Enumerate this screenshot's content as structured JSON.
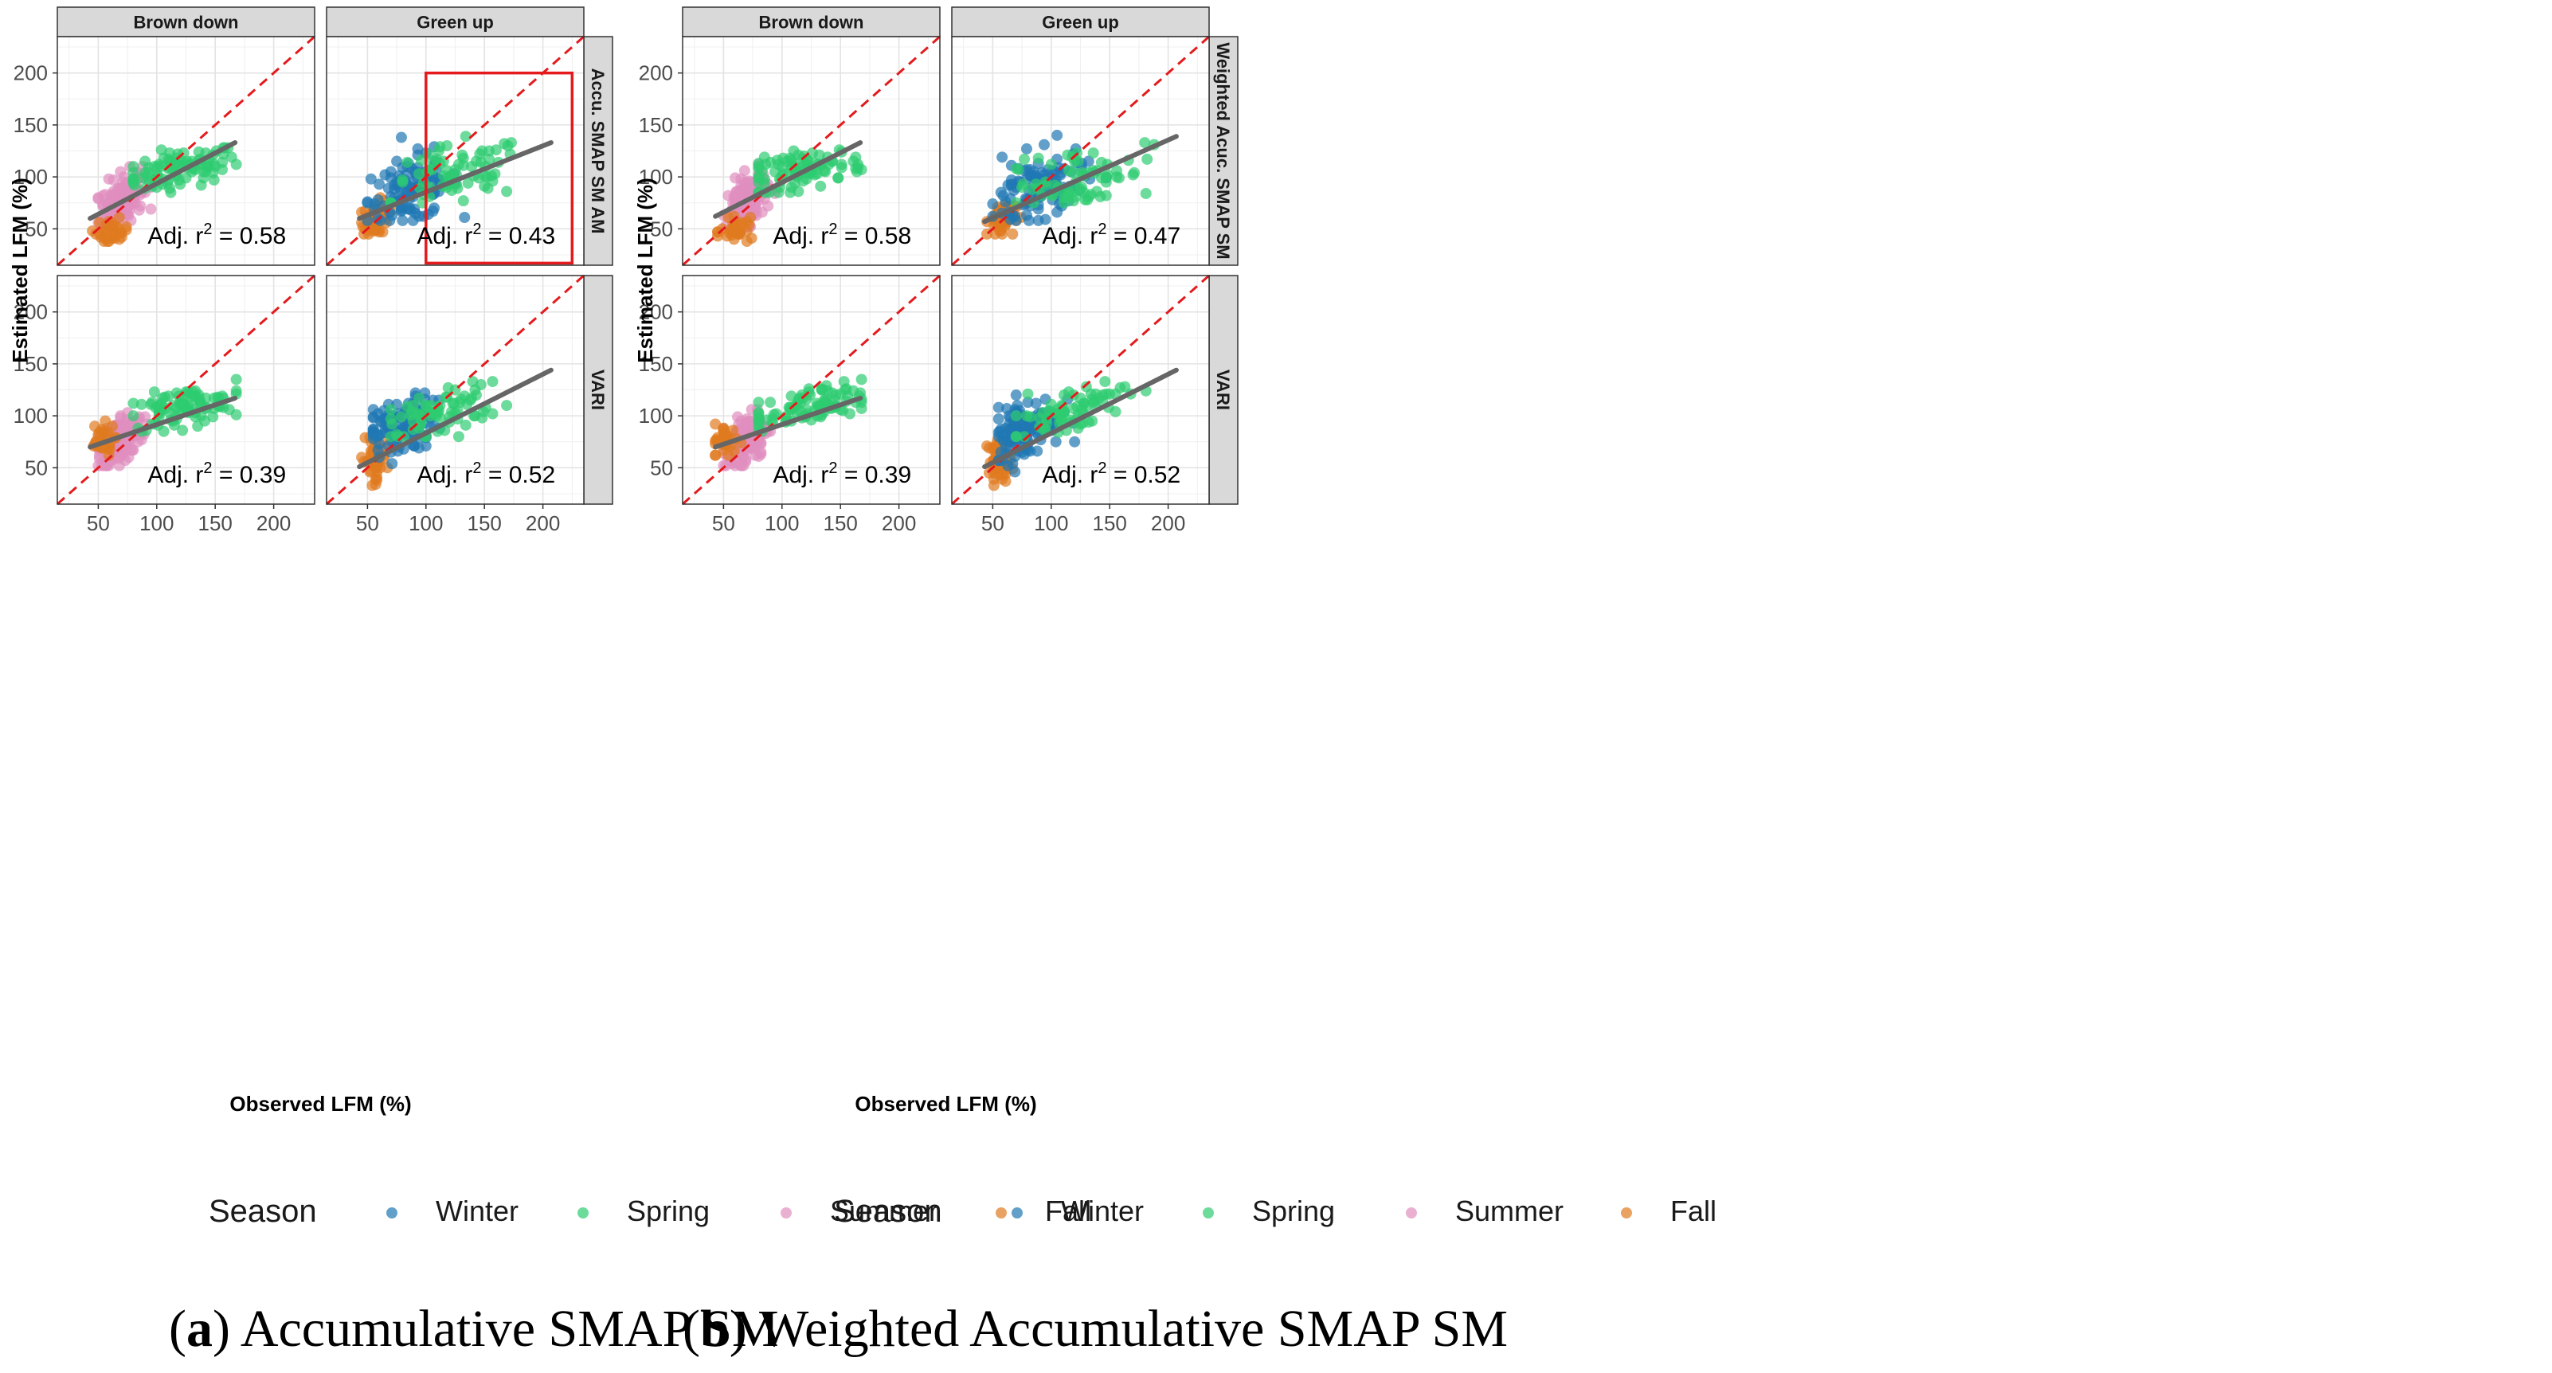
{
  "figure": {
    "captions": [
      {
        "letter": "a",
        "text": "Accumulative SMAP SM"
      },
      {
        "letter": "b",
        "text": "Weighted Accumulative SMAP SM"
      }
    ]
  },
  "legend": {
    "title": "Season",
    "items": [
      {
        "label": "Winter",
        "color": "#1f77b4"
      },
      {
        "label": "Spring",
        "color": "#2ecc71"
      },
      {
        "label": "Summer",
        "color": "#e08fbf"
      },
      {
        "label": "Fall",
        "color": "#e07b20"
      }
    ]
  },
  "chart_data": [
    {
      "type": "scatter",
      "id": "a",
      "xlabel": "Observed LFM (%)",
      "ylabel": "Estimated LFM (%)",
      "xlim": [
        15,
        235
      ],
      "ylim": [
        15,
        235
      ],
      "xticks": [
        50,
        100,
        150,
        200
      ],
      "yticks": [
        50,
        100,
        150,
        200
      ],
      "xtick_labels": [
        "50",
        "100",
        "150",
        "200"
      ],
      "ytick_labels": [
        "50",
        "100",
        "150",
        "200"
      ],
      "columns": [
        "Brown down",
        "Green up"
      ],
      "rows": [
        "Accu. SMAP SM AM",
        "VARI"
      ],
      "reference_line": "1:1 (dashed red)",
      "annotation_prefix": "Adj. r",
      "annotation_sup": "2",
      "highlight_box": {
        "panel": "0-1",
        "x": [
          100,
          225
        ],
        "y": [
          17,
          200
        ],
        "color": "#e41a1c"
      },
      "panels": [
        {
          "row": 0,
          "col": 0,
          "r2": "0.58",
          "fit": [
            [
              43,
              60
            ],
            [
              167,
              133
            ]
          ]
        },
        {
          "row": 0,
          "col": 1,
          "r2": "0.43",
          "fit": [
            [
              43,
              60
            ],
            [
              207,
              133
            ]
          ]
        },
        {
          "row": 1,
          "col": 0,
          "r2": "0.39",
          "fit": [
            [
              43,
              70
            ],
            [
              167,
              117
            ]
          ]
        },
        {
          "row": 1,
          "col": 1,
          "r2": "0.52",
          "fit": [
            [
              43,
              51
            ],
            [
              207,
              144
            ]
          ]
        }
      ]
    },
    {
      "type": "scatter",
      "id": "b",
      "xlabel": "Observed LFM (%)",
      "ylabel": "Estimated LFM (%)",
      "xlim": [
        15,
        235
      ],
      "ylim": [
        15,
        235
      ],
      "xticks": [
        50,
        100,
        150,
        200
      ],
      "yticks": [
        50,
        100,
        150,
        200
      ],
      "xtick_labels": [
        "50",
        "100",
        "150",
        "200"
      ],
      "ytick_labels": [
        "50",
        "100",
        "150",
        "200"
      ],
      "columns": [
        "Brown down",
        "Green up"
      ],
      "rows": [
        "Weighted Acuc. SMAP SM",
        "VARI"
      ],
      "reference_line": "1:1 (dashed red)",
      "annotation_prefix": "Adj. r",
      "annotation_sup": "2",
      "panels": [
        {
          "row": 0,
          "col": 0,
          "r2": "0.58",
          "fit": [
            [
              43,
              62
            ],
            [
              167,
              133
            ]
          ]
        },
        {
          "row": 0,
          "col": 1,
          "r2": "0.47",
          "fit": [
            [
              43,
              57
            ],
            [
              207,
              139
            ]
          ]
        },
        {
          "row": 1,
          "col": 0,
          "r2": "0.39",
          "fit": [
            [
              43,
              70
            ],
            [
              167,
              117
            ]
          ]
        },
        {
          "row": 1,
          "col": 1,
          "r2": "0.52",
          "fit": [
            [
              43,
              51
            ],
            [
              207,
              144
            ]
          ]
        }
      ]
    }
  ]
}
